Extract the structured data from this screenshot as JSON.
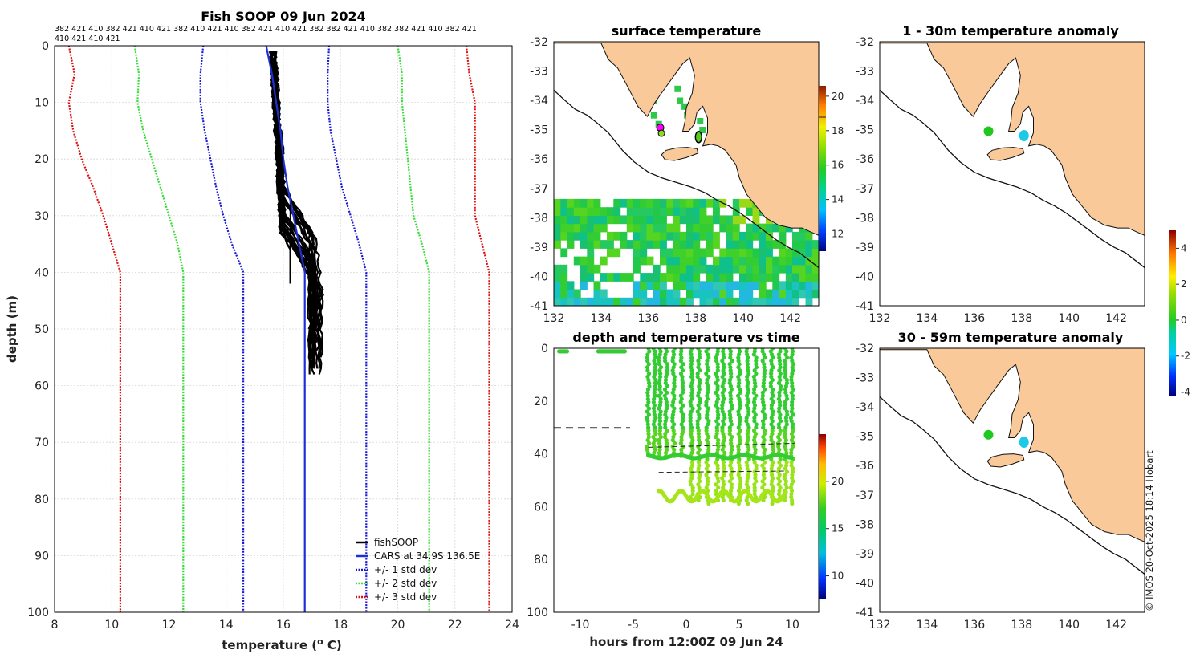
{
  "colors": {
    "land": "#f9c99a",
    "coast": "#111111",
    "cars": "#1f2fd6",
    "std1": "#1a1ad6",
    "std2": "#33dd33",
    "std3": "#e01010",
    "fish": "#000000"
  },
  "chart_data": [
    {
      "type": "line",
      "title": "Fish SOOP 09 Jun 2024",
      "xlabel": "temperature (° C)",
      "xlabel_main": "temperature (",
      "xlabel_super": "o",
      "xlabel_tail": " C)",
      "ylabel": "depth (m)",
      "xlim": [
        8,
        24
      ],
      "ylim": [
        100,
        0
      ],
      "xticks": [
        "8",
        "10",
        "12",
        "14",
        "16",
        "18",
        "20",
        "22",
        "24"
      ],
      "yticks": [
        "0",
        "10",
        "20",
        "30",
        "40",
        "50",
        "60",
        "70",
        "80",
        "90",
        "100"
      ],
      "vessel_ids_line1": "382 421 410 382 421 410 421 382 410 421 410 382 421 410 421 382 382 421 410 382 382 421 410 382 421",
      "vessel_ids_line2": "410 421 410 421",
      "legend": [
        "fishSOOP",
        "CARS at 34.9S 136.5E",
        "+/- 1 std dev",
        "+/- 2 std dev",
        "+/- 3 std dev"
      ],
      "series": [
        {
          "name": "CARS at 34.9S 136.5E",
          "depth": [
            0,
            5,
            10,
            15,
            20,
            25,
            30,
            35,
            40,
            45,
            50,
            60,
            70,
            80,
            90,
            100
          ],
          "values": [
            15.4,
            15.6,
            15.75,
            15.9,
            16.0,
            16.15,
            16.35,
            16.55,
            16.75,
            16.75,
            16.75,
            16.75,
            16.75,
            16.75,
            16.75,
            16.75
          ]
        },
        {
          "name": "-1 std dev",
          "depth": [
            0,
            5,
            10,
            15,
            20,
            25,
            30,
            35,
            40,
            45,
            50,
            60,
            70,
            80,
            90,
            100
          ],
          "values": [
            13.2,
            13.1,
            13.1,
            13.25,
            13.45,
            13.65,
            13.9,
            14.2,
            14.6,
            14.6,
            14.6,
            14.6,
            14.6,
            14.6,
            14.6,
            14.6
          ]
        },
        {
          "name": "+1 std dev",
          "depth": [
            0,
            5,
            10,
            15,
            20,
            25,
            30,
            35,
            40,
            45,
            50,
            60,
            70,
            80,
            90,
            100
          ],
          "values": [
            17.6,
            17.55,
            17.55,
            17.65,
            17.85,
            18.05,
            18.35,
            18.65,
            18.9,
            18.9,
            18.9,
            18.9,
            18.9,
            18.9,
            18.9,
            18.9
          ]
        },
        {
          "name": "-2 std dev",
          "depth": [
            0,
            5,
            10,
            15,
            20,
            25,
            30,
            35,
            40,
            45,
            50,
            60,
            70,
            80,
            90,
            100
          ],
          "values": [
            10.8,
            10.95,
            10.9,
            11.1,
            11.4,
            11.7,
            12.0,
            12.3,
            12.5,
            12.5,
            12.5,
            12.5,
            12.5,
            12.5,
            12.5,
            12.5
          ]
        },
        {
          "name": "+2 std dev",
          "depth": [
            0,
            5,
            10,
            15,
            20,
            25,
            30,
            35,
            40,
            45,
            50,
            60,
            70,
            80,
            90,
            100
          ],
          "values": [
            20.0,
            20.15,
            20.15,
            20.25,
            20.35,
            20.45,
            20.55,
            20.85,
            21.1,
            21.1,
            21.1,
            21.1,
            21.1,
            21.1,
            21.1,
            21.1
          ]
        },
        {
          "name": "-3 std dev",
          "depth": [
            0,
            5,
            10,
            15,
            20,
            25,
            30,
            35,
            40,
            45,
            50,
            60,
            70,
            80,
            90,
            100
          ],
          "values": [
            8.5,
            8.7,
            8.5,
            8.65,
            8.95,
            9.35,
            9.7,
            10.0,
            10.3,
            10.3,
            10.3,
            10.3,
            10.3,
            10.3,
            10.3,
            10.3
          ]
        },
        {
          "name": "+3 std dev",
          "depth": [
            0,
            5,
            10,
            15,
            20,
            25,
            30,
            35,
            40,
            45,
            50,
            60,
            70,
            80,
            90,
            100
          ],
          "values": [
            22.4,
            22.5,
            22.7,
            22.7,
            22.7,
            22.7,
            22.7,
            22.95,
            23.2,
            23.2,
            23.2,
            23.2,
            23.2,
            23.2,
            23.2,
            23.2
          ]
        }
      ]
    },
    {
      "type": "heatmap",
      "title": "surface temperature",
      "xlim": [
        132,
        143.2
      ],
      "ylim": [
        -41,
        -32
      ],
      "xticks": [
        "132",
        "134",
        "136",
        "138",
        "140",
        "142"
      ],
      "yticks": [
        "-32",
        "-33",
        "-34",
        "-35",
        "-36",
        "-37",
        "-38",
        "-39",
        "-40",
        "-41"
      ],
      "colorbar": {
        "range": [
          11,
          20.6
        ],
        "ticks": [
          "12",
          "14",
          "16",
          "18",
          "20"
        ]
      }
    },
    {
      "type": "scatter",
      "title": "1 - 30m temperature anomaly",
      "xlim": [
        132,
        143.2
      ],
      "ylim": [
        -41,
        -32
      ],
      "xticks": [
        "132",
        "134",
        "136",
        "138",
        "140",
        "142"
      ],
      "yticks": [
        "-32",
        "-33",
        "-34",
        "-35",
        "-36",
        "-37",
        "-38",
        "-39",
        "-40",
        "-41"
      ],
      "points": [
        {
          "lon": 136.6,
          "lat": -35.05,
          "anomaly": 0.2
        },
        {
          "lon": 138.1,
          "lat": -35.2,
          "anomaly": -1.3
        }
      ]
    },
    {
      "type": "scatter",
      "title": "30 - 59m temperature anomaly",
      "xlim": [
        132,
        143.2
      ],
      "ylim": [
        -41,
        -32
      ],
      "xticks": [
        "132",
        "134",
        "136",
        "138",
        "140",
        "142"
      ],
      "yticks": [
        "-32",
        "-33",
        "-34",
        "-35",
        "-36",
        "-37",
        "-38",
        "-39",
        "-40",
        "-41"
      ],
      "points": [
        {
          "lon": 136.6,
          "lat": -34.95,
          "anomaly": 0.3
        },
        {
          "lon": 138.1,
          "lat": -35.2,
          "anomaly": -1.3
        }
      ],
      "colorbar": {
        "range": [
          -4.2,
          5.0
        ],
        "ticks": [
          "4",
          "2",
          "0",
          "-2",
          "-4"
        ]
      }
    },
    {
      "type": "scatter",
      "title": "depth and temperature vs time",
      "xlabel": "hours from 12:00Z 09 Jun 24",
      "xlim": [
        -12.5,
        12.5
      ],
      "ylim": [
        100,
        0
      ],
      "xticks": [
        "-10",
        "-5",
        "0",
        "5",
        "10"
      ],
      "yticks": [
        "0",
        "20",
        "40",
        "60",
        "80",
        "100"
      ],
      "colorbar": {
        "range": [
          7.5,
          25
        ],
        "ticks": [
          "10",
          "15",
          "20"
        ]
      }
    }
  ],
  "copyright": "© IMOS 20-Oct-2025 18:14 Hobart"
}
